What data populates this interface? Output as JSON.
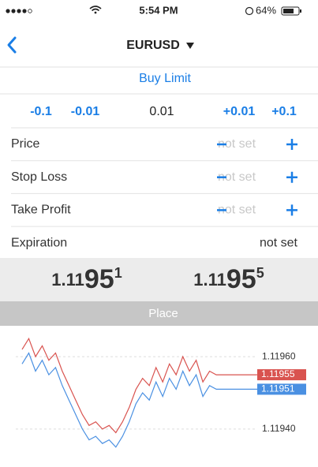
{
  "status": {
    "time": "5:54 PM",
    "battery": "64%"
  },
  "nav": {
    "title": "EURUSD"
  },
  "order_type": "Buy Limit",
  "volume": [
    "-0.1",
    "-0.01",
    "0.01",
    "+0.01",
    "+0.1"
  ],
  "rows": [
    {
      "label": "Price",
      "value": "not set"
    },
    {
      "label": "Stop Loss",
      "value": "not set"
    },
    {
      "label": "Take Profit",
      "value": "not set"
    },
    {
      "label": "Expiration",
      "value": "not set"
    }
  ],
  "quotes": {
    "bid": {
      "prefix": "1.11",
      "big": "95",
      "sup": "1"
    },
    "ask": {
      "prefix": "1.11",
      "big": "95",
      "sup": "5"
    }
  },
  "button": "Place",
  "chart_data": {
    "type": "line",
    "ylim": [
      1.11933,
      1.11967
    ],
    "yticks": [
      {
        "value": 1.1196,
        "label": "1.11960"
      },
      {
        "value": 1.1194,
        "label": "1.11940"
      }
    ],
    "grid": true,
    "series": [
      {
        "color": "#d9534f",
        "tag_label": "1.11955",
        "values": [
          1.11962,
          1.11965,
          1.1196,
          1.11963,
          1.11959,
          1.11961,
          1.11956,
          1.11952,
          1.11948,
          1.11944,
          1.11941,
          1.11942,
          1.1194,
          1.11941,
          1.11939,
          1.11942,
          1.11946,
          1.11951,
          1.11954,
          1.11952,
          1.11957,
          1.11953,
          1.11958,
          1.11955,
          1.1196,
          1.11956,
          1.11959,
          1.11953,
          1.11956,
          1.11955,
          1.11955,
          1.11955,
          1.11955,
          1.11955,
          1.11955,
          1.11955
        ]
      },
      {
        "color": "#4a90e2",
        "tag_label": "1.11951",
        "values": [
          1.11958,
          1.11961,
          1.11956,
          1.11959,
          1.11955,
          1.11957,
          1.11952,
          1.11948,
          1.11944,
          1.1194,
          1.11937,
          1.11938,
          1.11936,
          1.11937,
          1.11935,
          1.11938,
          1.11942,
          1.11947,
          1.1195,
          1.11948,
          1.11953,
          1.11949,
          1.11954,
          1.11951,
          1.11956,
          1.11952,
          1.11955,
          1.11949,
          1.11952,
          1.11951,
          1.11951,
          1.11951,
          1.11951,
          1.11951,
          1.11951,
          1.11951
        ]
      }
    ]
  }
}
